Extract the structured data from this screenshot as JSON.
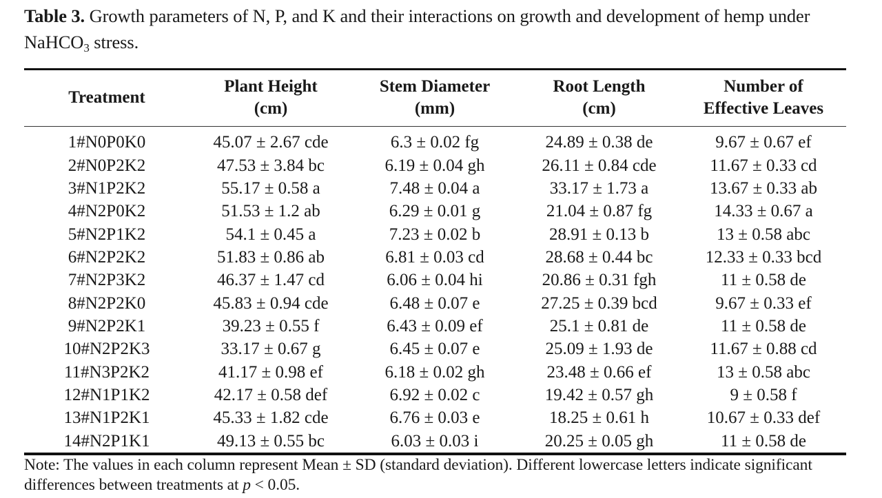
{
  "caption": {
    "label": "Table 3.",
    "text_before_sub": " Growth parameters of N, P, and K and their interactions on growth and development of hemp under NaHCO",
    "subscript": "3",
    "text_after_sub": " stress."
  },
  "table": {
    "headers": [
      {
        "line1": "Treatment",
        "line2": ""
      },
      {
        "line1": "Plant Height",
        "line2": "(cm)"
      },
      {
        "line1": "Stem Diameter",
        "line2": "(mm)"
      },
      {
        "line1": "Root Length",
        "line2": "(cm)"
      },
      {
        "line1": "Number of",
        "line2": "Effective Leaves"
      }
    ],
    "rows": [
      [
        "1#N0P0K0",
        "45.07 ± 2.67 cde",
        "6.3 ± 0.02 fg",
        "24.89 ± 0.38 de",
        "9.67 ± 0.67 ef"
      ],
      [
        "2#N0P2K2",
        "47.53 ± 3.84 bc",
        "6.19 ± 0.04 gh",
        "26.11 ± 0.84 cde",
        "11.67 ± 0.33 cd"
      ],
      [
        "3#N1P2K2",
        "55.17 ± 0.58 a",
        "7.48 ± 0.04 a",
        "33.17 ± 1.73 a",
        "13.67 ± 0.33 ab"
      ],
      [
        "4#N2P0K2",
        "51.53 ± 1.2 ab",
        "6.29 ± 0.01 g",
        "21.04 ± 0.87 fg",
        "14.33 ± 0.67 a"
      ],
      [
        "5#N2P1K2",
        "54.1 ± 0.45 a",
        "7.23 ± 0.02 b",
        "28.91 ± 0.13 b",
        "13 ± 0.58 abc"
      ],
      [
        "6#N2P2K2",
        "51.83 ± 0.86 ab",
        "6.81 ± 0.03 cd",
        "28.68 ± 0.44 bc",
        "12.33 ± 0.33 bcd"
      ],
      [
        "7#N2P3K2",
        "46.37 ± 1.47 cd",
        "6.06 ± 0.04 hi",
        "20.86 ± 0.31 fgh",
        "11 ± 0.58 de"
      ],
      [
        "8#N2P2K0",
        "45.83 ± 0.94 cde",
        "6.48 ± 0.07 e",
        "27.25 ± 0.39 bcd",
        "9.67 ± 0.33 ef"
      ],
      [
        "9#N2P2K1",
        "39.23 ± 0.55 f",
        "6.43 ± 0.09 ef",
        "25.1 ± 0.81 de",
        "11 ± 0.58 de"
      ],
      [
        "10#N2P2K3",
        "33.17 ± 0.67 g",
        "6.45 ± 0.07 e",
        "25.09 ± 1.93 de",
        "11.67 ± 0.88 cd"
      ],
      [
        "11#N3P2K2",
        "41.17 ± 0.98 ef",
        "6.18 ± 0.02 gh",
        "23.48 ± 0.66 ef",
        "13 ± 0.58 abc"
      ],
      [
        "12#N1P1K2",
        "42.17 ± 0.58 def",
        "6.92 ± 0.02 c",
        "19.42 ± 0.57 gh",
        "9 ± 0.58 f"
      ],
      [
        "13#N1P2K1",
        "45.33 ± 1.82 cde",
        "6.76 ± 0.03 e",
        "18.25 ± 0.61 h",
        "10.67 ± 0.33 def"
      ],
      [
        "14#N2P1K1",
        "49.13 ± 0.55 bc",
        "6.03 ± 0.03 i",
        "20.25 ± 0.05 gh",
        "11 ± 0.58 de"
      ]
    ]
  },
  "note": {
    "text_before_italic": "Note: The values in each column represent Mean ± SD (standard deviation). Different lowercase letters indicate significant differences between treatments at ",
    "italic": "p",
    "text_after_italic": " < 0.05."
  }
}
